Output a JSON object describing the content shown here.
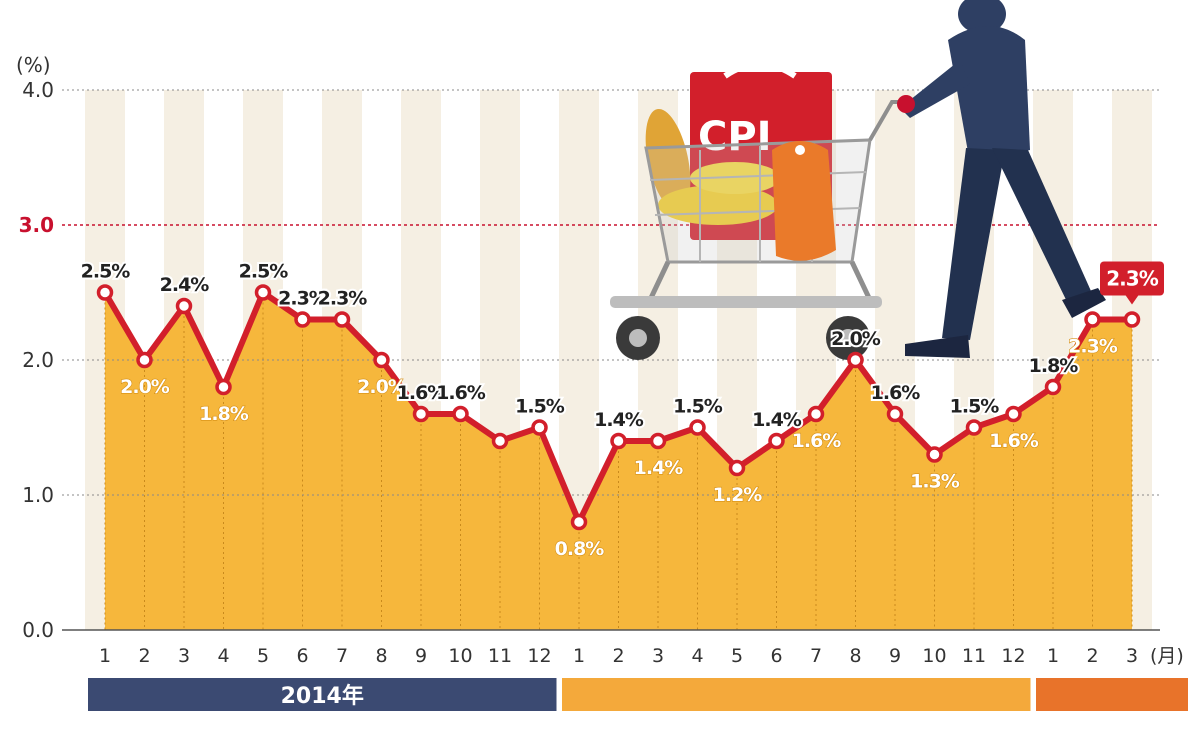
{
  "chart_data": {
    "type": "area",
    "y_unit_label": "(%)",
    "x_unit_label": "(月)",
    "ylim": [
      0,
      4
    ],
    "y_ticks": [
      {
        "label": "4.0",
        "value": 4.0,
        "highlight": false
      },
      {
        "label": "3.0",
        "value": 3.0,
        "highlight": true
      },
      {
        "label": "2.0",
        "value": 2.0,
        "highlight": false
      },
      {
        "label": "1.0",
        "value": 1.0,
        "highlight": false
      },
      {
        "label": "0.0",
        "value": 0.0,
        "highlight": false
      }
    ],
    "categories": [
      "1",
      "2",
      "3",
      "4",
      "5",
      "6",
      "7",
      "8",
      "9",
      "10",
      "11",
      "12",
      "1",
      "2",
      "3",
      "4",
      "5",
      "6",
      "7",
      "8",
      "9",
      "10",
      "11",
      "12",
      "1",
      "2",
      "3"
    ],
    "values": [
      2.5,
      2.0,
      2.4,
      1.8,
      2.5,
      2.3,
      2.3,
      2.0,
      1.6,
      1.6,
      1.4,
      1.5,
      0.8,
      1.4,
      1.4,
      1.5,
      1.2,
      1.4,
      1.6,
      2.0,
      1.6,
      1.3,
      1.5,
      1.6,
      1.8,
      2.3,
      2.3
    ],
    "data_labels": [
      "2.5%",
      "2.0%",
      "2.4%",
      "1.8%",
      "2.5%",
      "2.3%",
      "2.3%",
      "2.0%",
      "1.6%",
      "1.6%",
      "",
      "1.5%",
      "0.8%",
      "1.4%",
      "1.4%",
      "1.5%",
      "1.2%",
      "1.4%",
      "1.6%",
      "2.0%",
      "1.6%",
      "1.3%",
      "1.5%",
      "1.6%",
      "1.8%",
      "2.3%",
      "2.3%"
    ],
    "label_positions": [
      "above",
      "below",
      "above",
      "below",
      "above",
      "above",
      "above",
      "below",
      "above",
      "above",
      "above",
      "above",
      "below",
      "above",
      "below",
      "above",
      "below",
      "above",
      "below",
      "above",
      "above",
      "below",
      "above",
      "below",
      "above",
      "below",
      "callout"
    ],
    "periods": [
      {
        "label": "2014年",
        "color": "#3b4a72"
      },
      {
        "label": "",
        "color": "#f4a93b"
      },
      {
        "label": "",
        "color": "#e8732a"
      }
    ],
    "grid": true,
    "colors": {
      "area_fill": "#f6b73c",
      "line": "#d21f2b",
      "marker_fill": "#ffffff",
      "stripe": "#f5efe3",
      "highlight_grid": "#c8102e",
      "callout_bg": "#d21f2b"
    },
    "illustration": {
      "label": "CPI",
      "description_icons": [
        "shopping-cart-icon",
        "shopper-silhouette-icon",
        "shopping-bag-icon",
        "price-tag-icon"
      ]
    }
  }
}
